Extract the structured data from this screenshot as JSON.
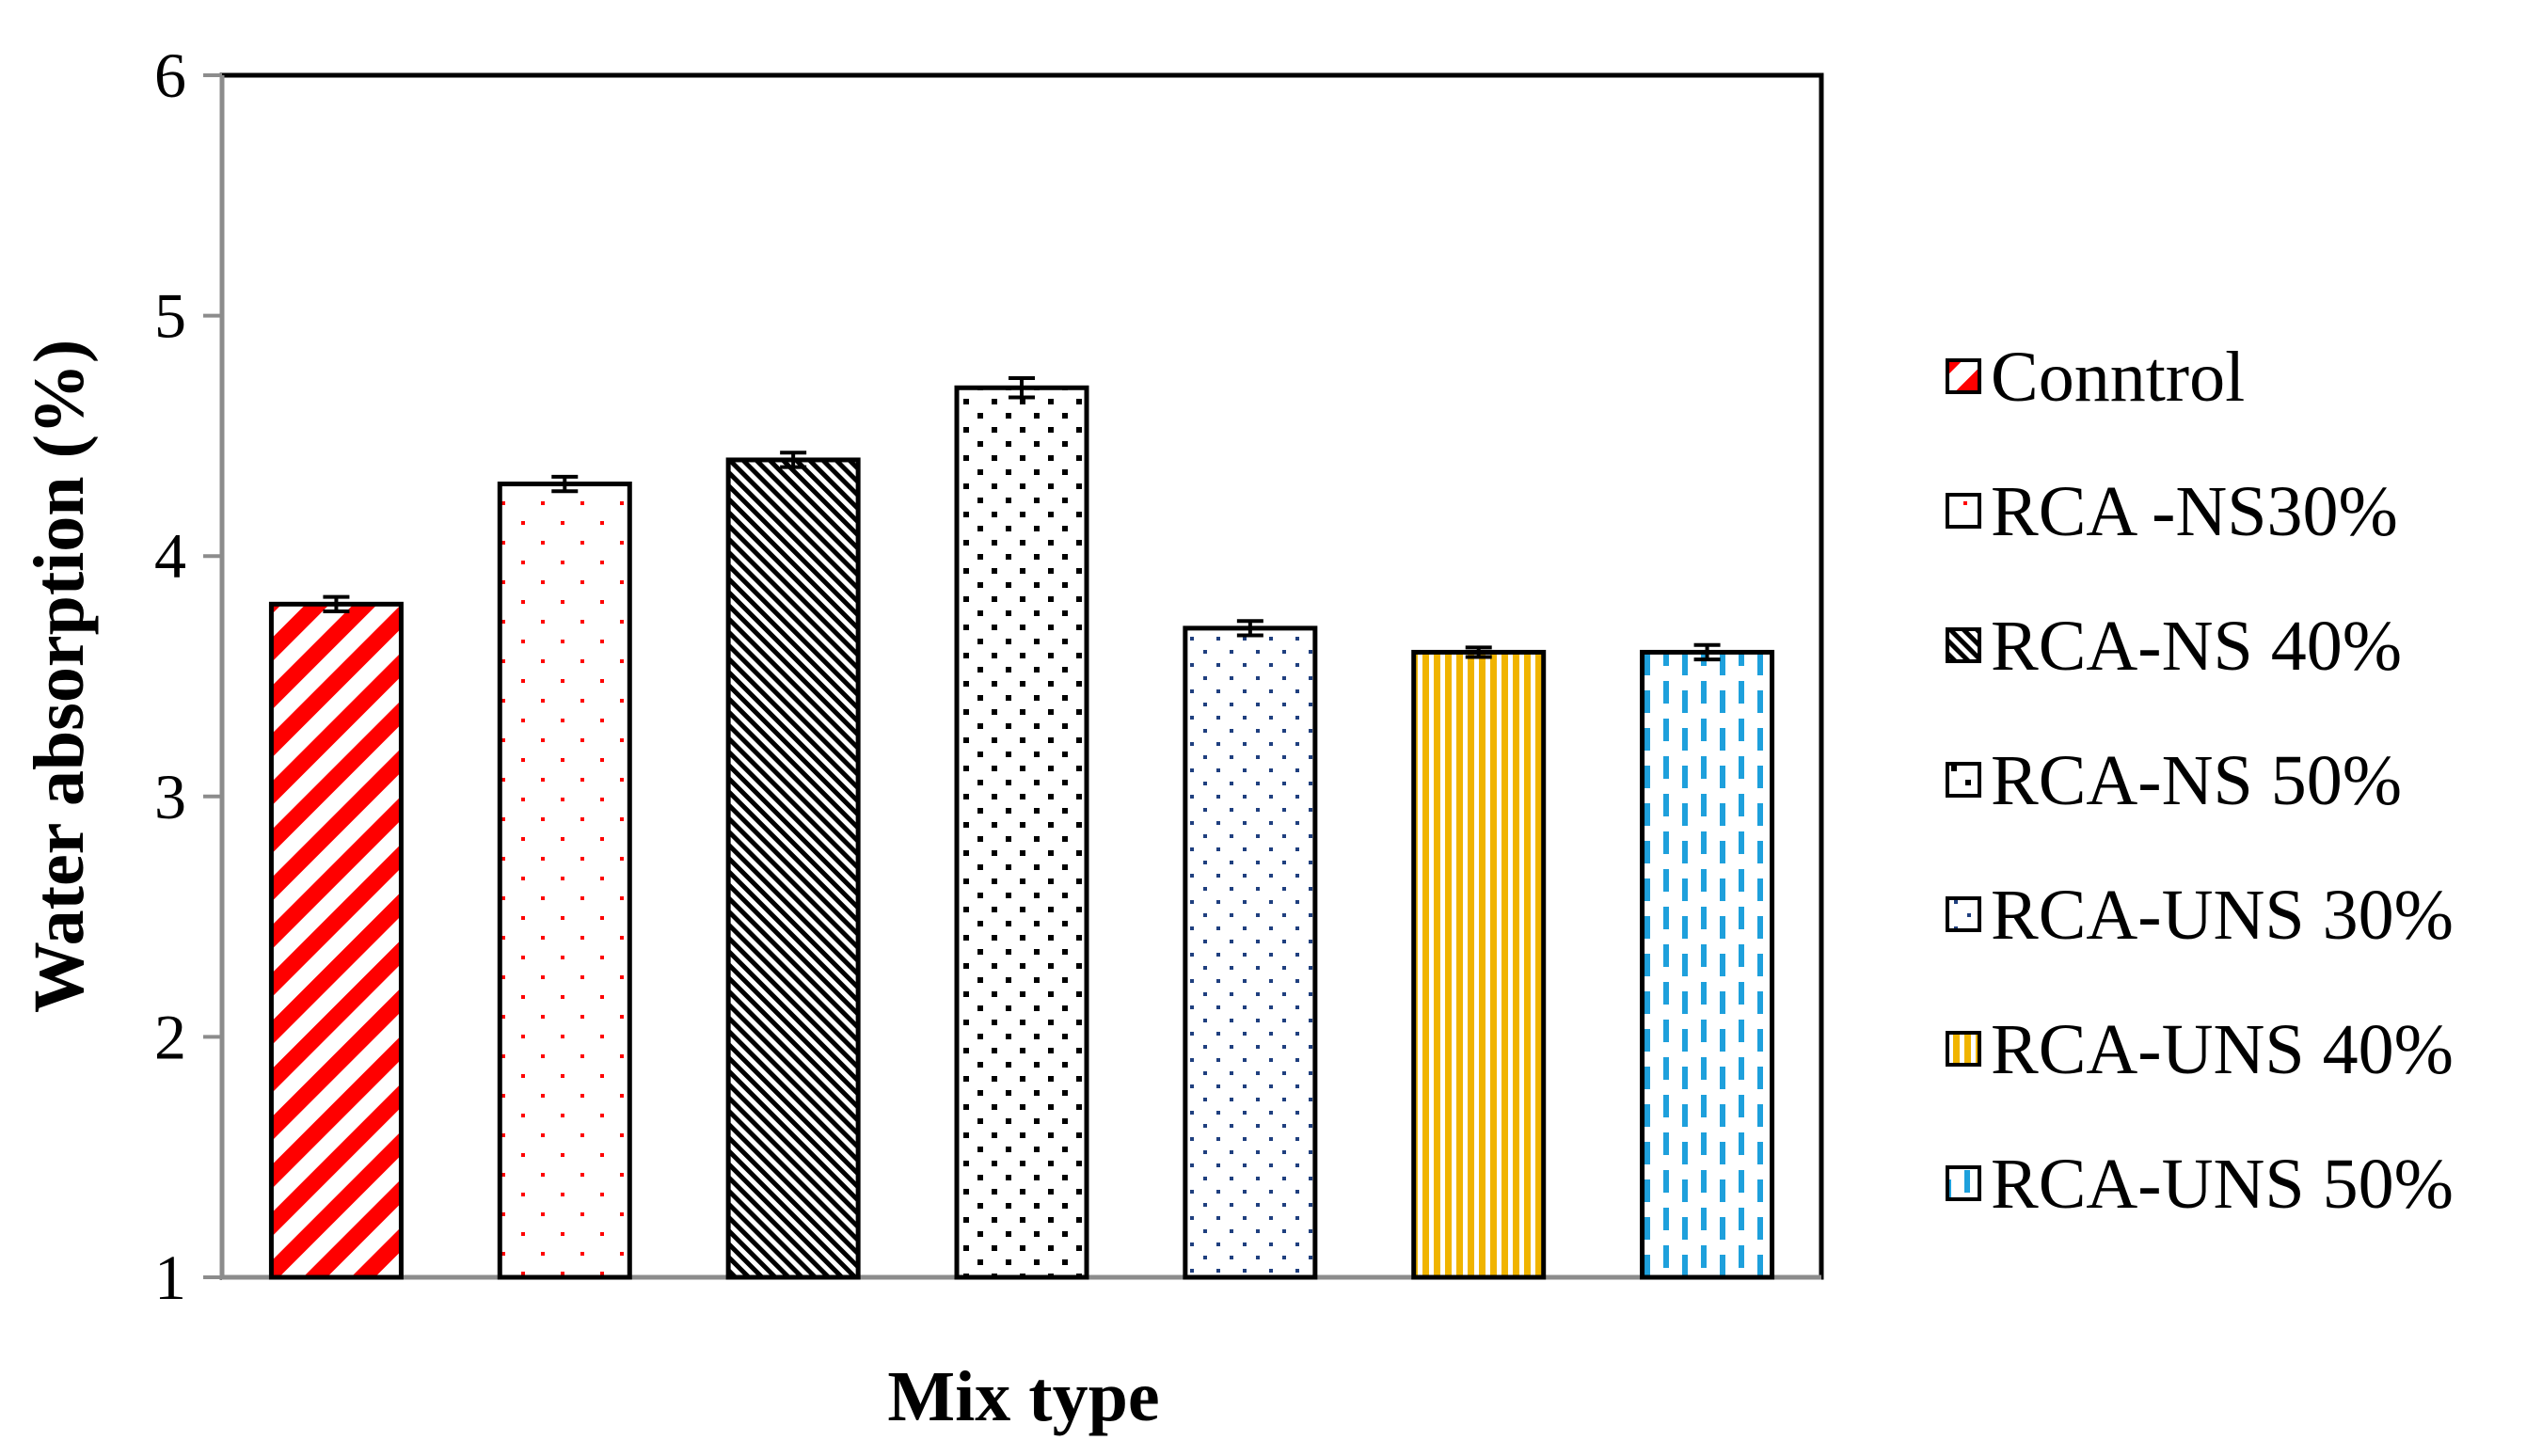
{
  "chart_data": {
    "type": "bar",
    "title": "",
    "xlabel": "Mix type",
    "ylabel": "Water absorption (%)",
    "ylim": [
      1,
      6
    ],
    "yticks": [
      1,
      2,
      3,
      4,
      5,
      6
    ],
    "grid": false,
    "legend_position": "right",
    "categories": [
      "Conntrol",
      "RCA -NS30%",
      "RCA-NS 40%",
      "RCA-NS 50%",
      "RCA-UNS 30%",
      "RCA-UNS 40%",
      "RCA-UNS 50%"
    ],
    "values": [
      3.8,
      4.3,
      4.4,
      4.7,
      3.7,
      3.6,
      3.6
    ],
    "errors": [
      0.03,
      0.03,
      0.03,
      0.04,
      0.03,
      0.02,
      0.03
    ],
    "series": [
      {
        "name": "Conntrol",
        "value": 3.8,
        "error": 0.03,
        "pattern": "diagonal-stripes",
        "color": "#ff0000"
      },
      {
        "name": "RCA -NS30%",
        "value": 4.3,
        "error": 0.03,
        "pattern": "sparse-dots",
        "color": "#ff0000"
      },
      {
        "name": "RCA-NS 40%",
        "value": 4.4,
        "error": 0.03,
        "pattern": "dense-diagonal",
        "color": "#000000"
      },
      {
        "name": "RCA-NS 50%",
        "value": 4.7,
        "error": 0.04,
        "pattern": "dotted-grid",
        "color": "#000000"
      },
      {
        "name": "RCA-UNS 30%",
        "value": 3.7,
        "error": 0.03,
        "pattern": "small-dots",
        "color": "#1f3f7f"
      },
      {
        "name": "RCA-UNS 40%",
        "value": 3.6,
        "error": 0.02,
        "pattern": "vertical-stripes",
        "color": "#f0b400"
      },
      {
        "name": "RCA-UNS 50%",
        "value": 3.6,
        "error": 0.03,
        "pattern": "dashed-vertical",
        "color": "#1ea0dc"
      }
    ]
  }
}
